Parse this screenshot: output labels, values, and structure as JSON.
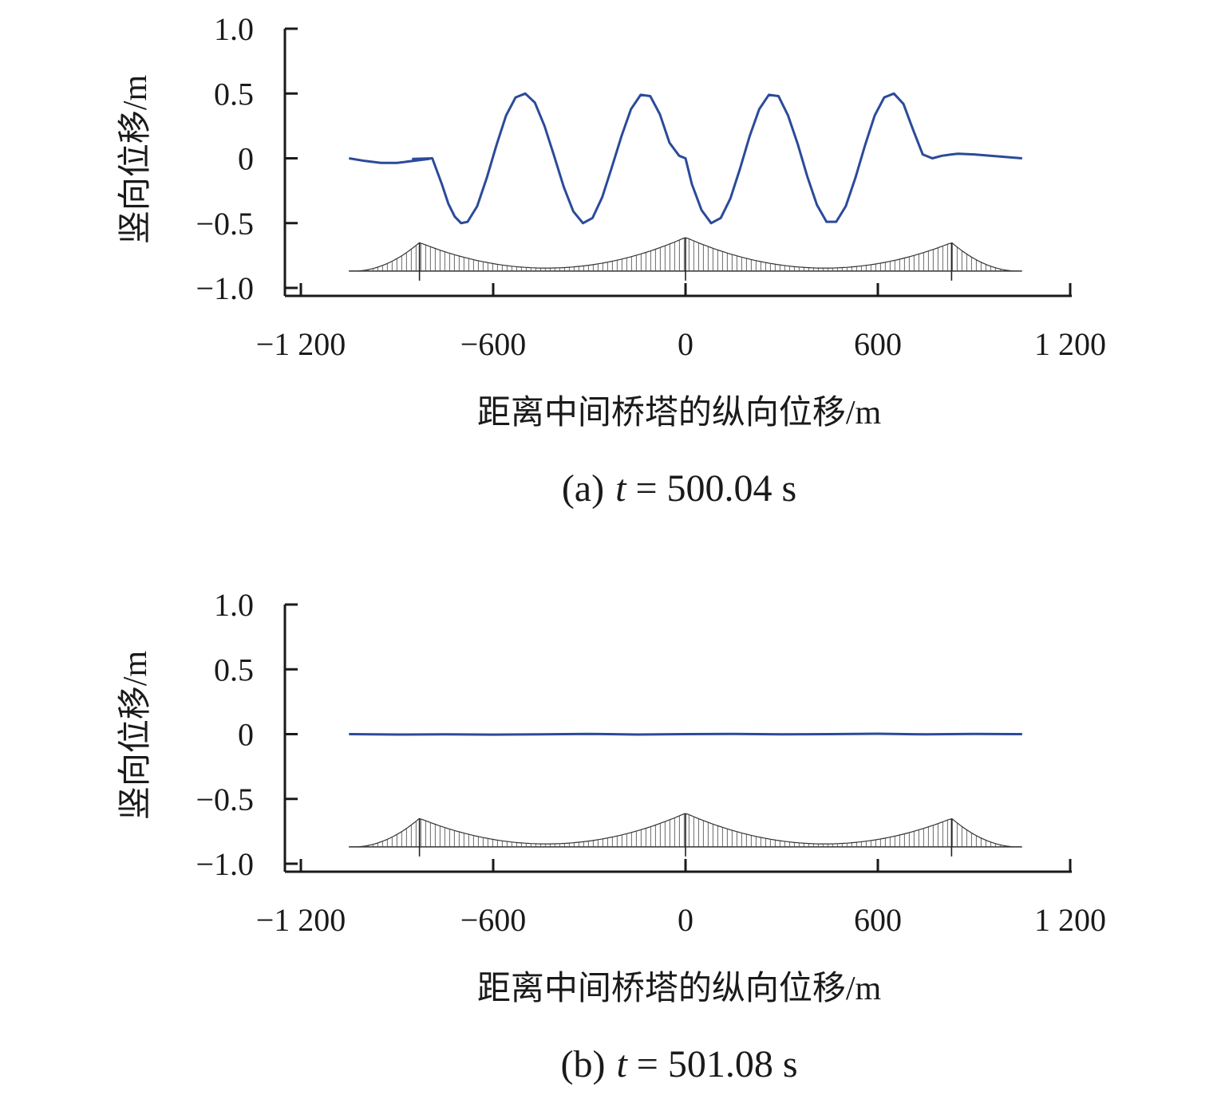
{
  "chart_data": [
    {
      "type": "line",
      "caption_prefix": "(a)",
      "caption_var": "t",
      "caption_value": "= 500.04 s",
      "xlabel": "距离中间桥塔的纵向位移/m",
      "ylabel": "竖向位移/m",
      "xlim": [
        -1200,
        1200
      ],
      "ylim": [
        -1.0,
        1.0
      ],
      "x_ticks": [
        "−1 200",
        "−600",
        "0",
        "600",
        "1 200"
      ],
      "y_ticks": [
        "1.0",
        "0.5",
        "0",
        "−0.5",
        "−1.0"
      ],
      "line_color": "#2b4a9a",
      "series": [
        {
          "x": [
            -1050,
            -1000,
            -950,
            -900,
            -850,
            -800,
            -850,
            -790,
            -760,
            -740,
            -720,
            -700,
            -680,
            -650,
            -620,
            -590,
            -560,
            -530,
            -500,
            -470,
            -440,
            -410,
            -380,
            -350,
            -320,
            -290,
            -260,
            -230,
            -200,
            -170,
            -140,
            -110,
            -80,
            -50,
            -20,
            0,
            20,
            50,
            80,
            110,
            140,
            170,
            200,
            230,
            260,
            290,
            320,
            350,
            380,
            410,
            440,
            470,
            500,
            530,
            560,
            590,
            620,
            650,
            680,
            710,
            740,
            770,
            800,
            830,
            850,
            900,
            950,
            1000,
            1050
          ],
          "y": [
            0.0,
            -0.02,
            -0.035,
            -0.035,
            -0.02,
            -0.005,
            -0.005,
            0.0,
            -0.2,
            -0.35,
            -0.45,
            -0.5,
            -0.49,
            -0.37,
            -0.15,
            0.1,
            0.33,
            0.47,
            0.5,
            0.43,
            0.25,
            0.02,
            -0.22,
            -0.41,
            -0.5,
            -0.46,
            -0.3,
            -0.07,
            0.17,
            0.38,
            0.49,
            0.48,
            0.34,
            0.12,
            0.02,
            0.0,
            -0.2,
            -0.4,
            -0.5,
            -0.46,
            -0.31,
            -0.08,
            0.17,
            0.38,
            0.49,
            0.48,
            0.33,
            0.11,
            -0.14,
            -0.36,
            -0.49,
            -0.49,
            -0.37,
            -0.15,
            0.1,
            0.33,
            0.47,
            0.5,
            0.42,
            0.22,
            0.03,
            0.0,
            0.02,
            0.03,
            0.035,
            0.03,
            0.02,
            0.01,
            0.0
          ]
        }
      ]
    },
    {
      "type": "line",
      "caption_prefix": "(b)",
      "caption_var": "t",
      "caption_value": "= 501.08 s",
      "xlabel": "距离中间桥塔的纵向位移/m",
      "ylabel": "竖向位移/m",
      "xlim": [
        -1200,
        1200
      ],
      "ylim": [
        -1.0,
        1.0
      ],
      "x_ticks": [
        "−1 200",
        "−600",
        "0",
        "600",
        "1 200"
      ],
      "y_ticks": [
        "1.0",
        "0.5",
        "0",
        "−0.5",
        "−1.0"
      ],
      "line_color": "#2b4a9a",
      "series": [
        {
          "x": [
            -1050,
            -900,
            -750,
            -600,
            -450,
            -300,
            -150,
            0,
            150,
            300,
            450,
            600,
            750,
            900,
            1050
          ],
          "y": [
            0.0,
            -0.003,
            -0.002,
            -0.004,
            -0.002,
            0.002,
            -0.003,
            0.0,
            0.002,
            -0.002,
            0.0,
            0.003,
            -0.002,
            0.001,
            0.0
          ]
        }
      ]
    }
  ]
}
